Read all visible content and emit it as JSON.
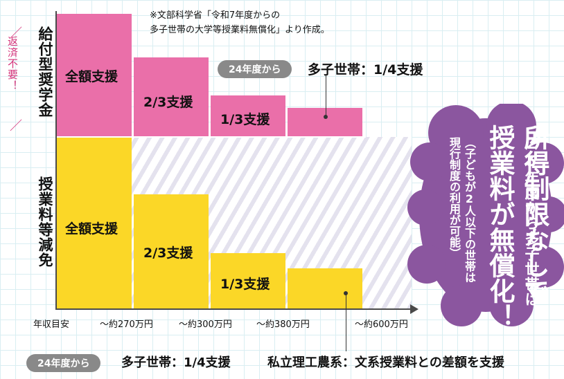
{
  "left_labels": {
    "kyufu": "給付型奨学金",
    "henzai": "返済不要！",
    "jugyoryo": "授業料等減免"
  },
  "source_note": {
    "line1": "※文部科学省「令和7年度からの",
    "line2": "多子世帯の大学等授業料無償化」より作成。"
  },
  "bars": {
    "kyufu": [
      "全額支援",
      "2/3支援",
      "1/3支援"
    ],
    "genmen": [
      "全額支援",
      "2/3支援",
      "1/3支援"
    ]
  },
  "x_axis": {
    "label": "年収目安",
    "ticks": [
      "〜約270万円",
      "〜約300万円",
      "〜約380万円",
      "〜約600万円"
    ]
  },
  "top_callout": {
    "badge": "24年度から",
    "text": "多子世帯：1/4支援"
  },
  "bottom_callout": {
    "badge": "24年度から",
    "text1": "多子世帯：1/4支援",
    "text2": "私立理工農系：文系授業料との差額を支援"
  },
  "cloud": {
    "line1": "25年度から多子世帯は",
    "line2a": "所得制限なしで",
    "line2b": "授業料が無償化！",
    "line3a": "（子どもが2人以下の世帯は",
    "line3b": "現行制度の利用が可能）",
    "color": "#8b569f"
  },
  "colors": {
    "pink": "#ea6fa9",
    "yellow": "#fbd727",
    "badge": "#898989"
  }
}
